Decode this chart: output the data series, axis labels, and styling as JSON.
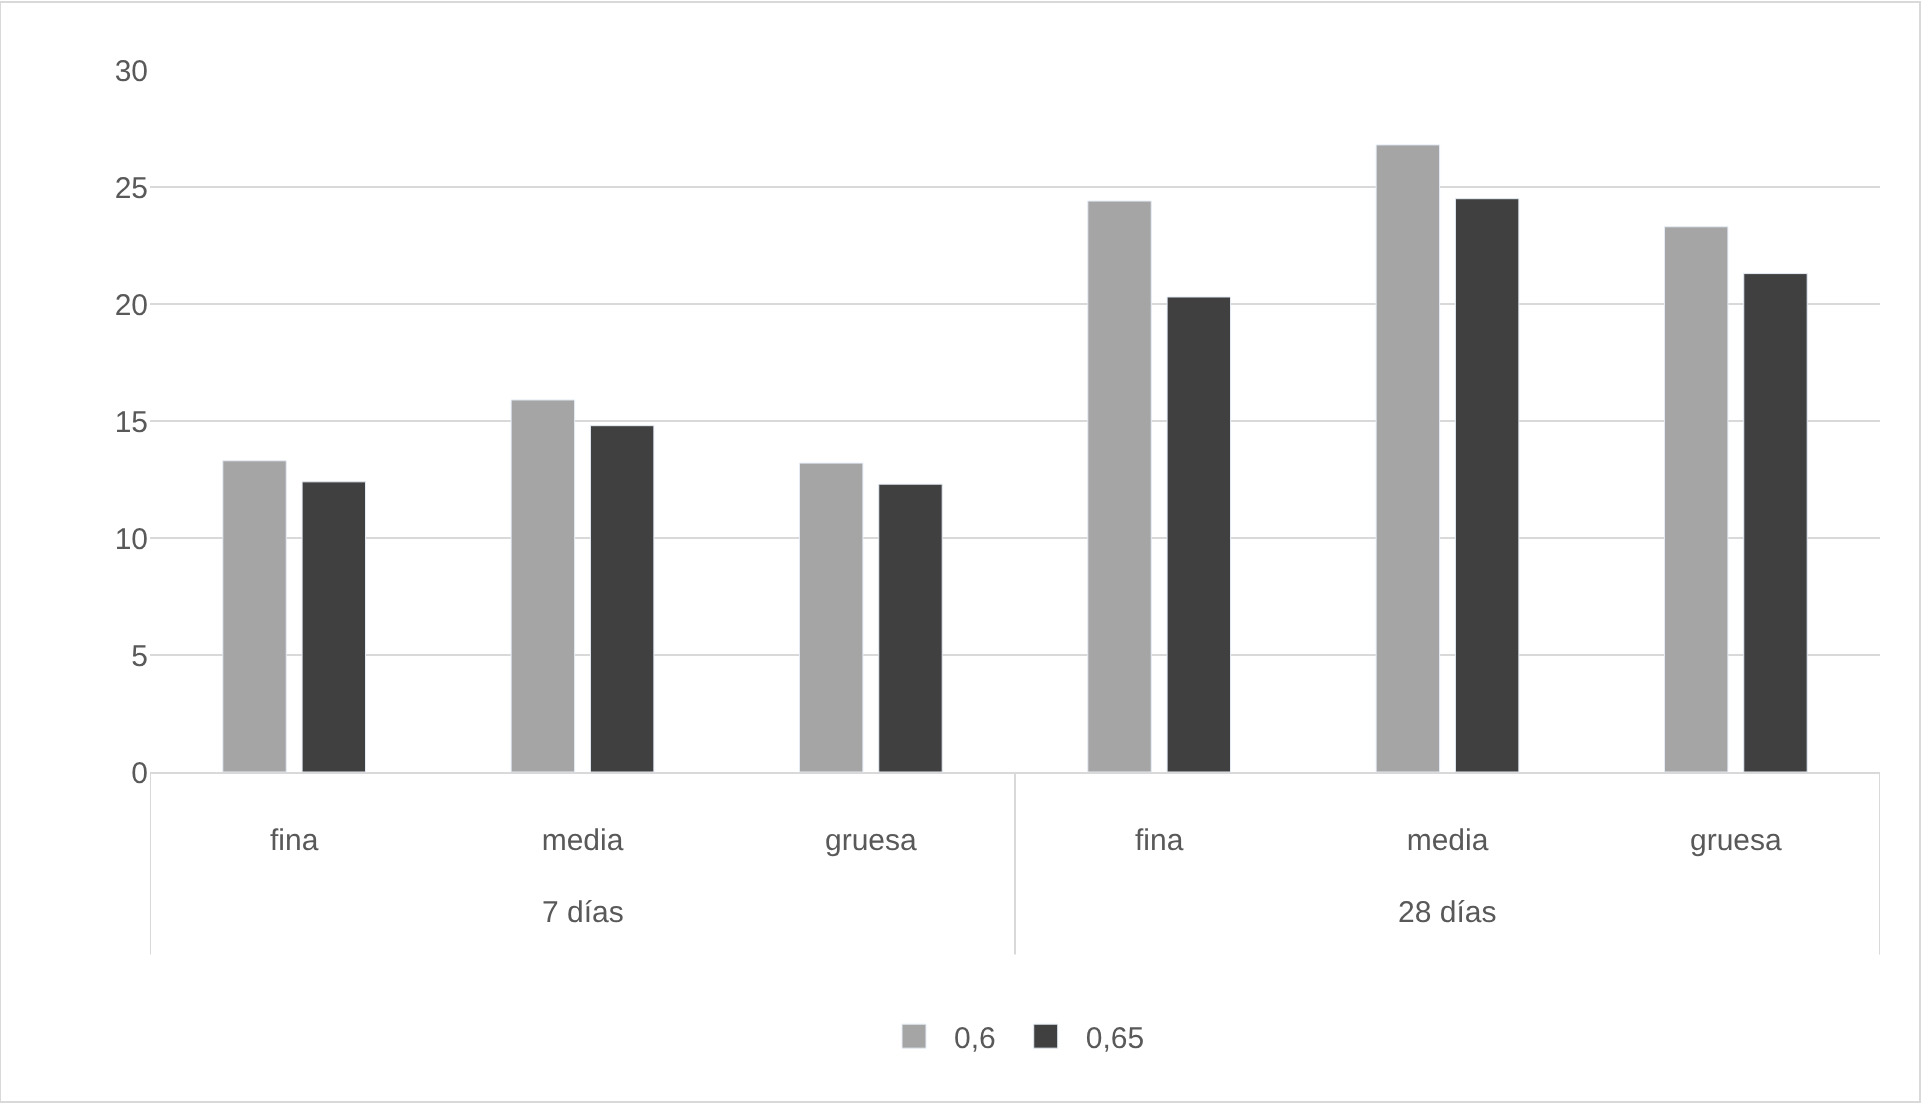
{
  "chart_data": {
    "type": "bar",
    "categories": [
      "fina",
      "media",
      "gruesa",
      "fina",
      "media",
      "gruesa"
    ],
    "series": [
      {
        "name": "0,6",
        "color": "#a5a5a5",
        "values": [
          13.3,
          15.9,
          13.2,
          24.4,
          26.8,
          23.3
        ]
      },
      {
        "name": "0,65",
        "color": "#404040",
        "values": [
          12.4,
          14.8,
          12.3,
          20.3,
          24.5,
          21.3
        ]
      }
    ],
    "annotations": [
      "7 días",
      "28 días"
    ],
    "ylim": [
      0,
      30
    ],
    "yticks": [
      0,
      5,
      10,
      15,
      20,
      25,
      30
    ],
    "grid": "y",
    "legend": "bottom"
  }
}
